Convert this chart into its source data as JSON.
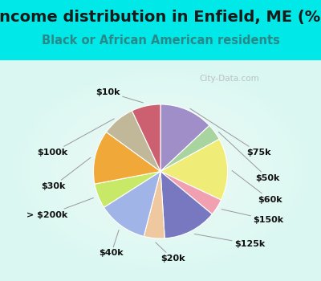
{
  "title": "Income distribution in Enfield, ME (%)",
  "subtitle": "Black or African American residents",
  "bg_cyan": "#00e8e8",
  "bg_chart_center": "#f0faf5",
  "labels": [
    "$75k",
    "$50k",
    "$60k",
    "$150k",
    "$125k",
    "$20k",
    "$40k",
    "> $200k",
    "$30k",
    "$100k",
    "$10k"
  ],
  "values": [
    13,
    4,
    15,
    4,
    13,
    5,
    12,
    6,
    13,
    8,
    7
  ],
  "colors": [
    "#a08ec8",
    "#a8d4a0",
    "#f0ec78",
    "#f0a0b0",
    "#7878c0",
    "#f0c8a0",
    "#a0b4e8",
    "#c8e868",
    "#f0a838",
    "#c0b898",
    "#cc6070"
  ],
  "watermark": "City-Data.com",
  "title_fontsize": 14,
  "subtitle_fontsize": 10.5,
  "label_fontsize": 8
}
